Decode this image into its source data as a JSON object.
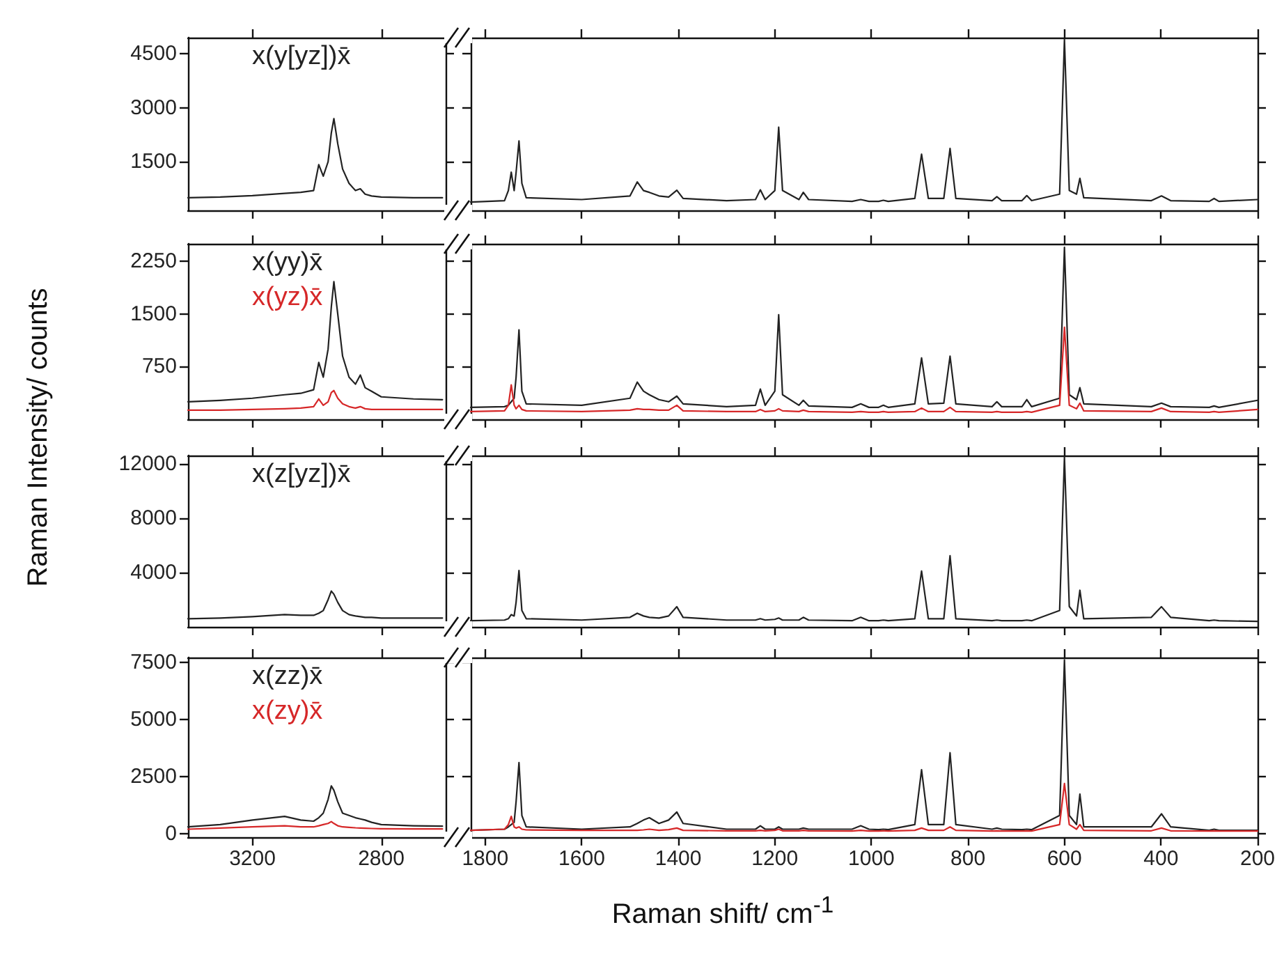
{
  "chart_data": [
    {
      "type": "line",
      "ylabel": "Raman Intensity/ counts",
      "legend": "top left",
      "marker": "none",
      "tick_labels": "y",
      "x": [
        3400,
        3300,
        3200,
        3100,
        3050,
        3010,
        2994,
        2980,
        2965,
        2955,
        2947,
        2935,
        2920,
        2900,
        2880,
        2865,
        2850,
        2830,
        2800,
        2700,
        2610
      ],
      "xlim": [
        3400,
        2600
      ],
      "xticks": [
        3200,
        2800
      ],
      "ylim": [
        150,
        4950
      ],
      "yticks": [
        1500,
        3000,
        4500
      ],
      "series": [
        {
          "name": "x(y[yz])x̄",
          "color": "#222222",
          "values": [
            500,
            520,
            560,
            620,
            650,
            700,
            1420,
            1100,
            1500,
            2300,
            2700,
            2000,
            1300,
            900,
            700,
            750,
            600,
            550,
            520,
            500,
            500
          ]
        }
      ]
    },
    {
      "type": "line",
      "marker": "none",
      "tick_labels": false,
      "x": [
        1830,
        1760,
        1752,
        1746,
        1740,
        1736,
        1730,
        1724,
        1715,
        1600,
        1500,
        1485,
        1472,
        1460,
        1440,
        1420,
        1403,
        1390,
        1300,
        1240,
        1230,
        1220,
        1200,
        1192,
        1184,
        1150,
        1141,
        1130,
        1040,
        1022,
        1005,
        985,
        975,
        965,
        910,
        896,
        882,
        850,
        837,
        825,
        750,
        740,
        730,
        688,
        678,
        668,
        610,
        600,
        590,
        575,
        568,
        560,
        420,
        399,
        380,
        300,
        290,
        280,
        200
      ],
      "xlim": [
        1830,
        200
      ],
      "xticks": [
        1800,
        1600,
        1400,
        1200,
        1000,
        800,
        600,
        400,
        200
      ],
      "ylim": [
        150,
        4950
      ],
      "yticks": [
        1500,
        3000,
        4500
      ],
      "series": [
        {
          "color": "#222222",
          "values": [
            380,
            420,
            700,
            1210,
            700,
            1200,
            2080,
            900,
            500,
            450,
            550,
            940,
            700,
            650,
            550,
            520,
            710,
            480,
            420,
            450,
            720,
            450,
            700,
            2460,
            700,
            450,
            650,
            450,
            400,
            450,
            400,
            400,
            430,
            400,
            480,
            1710,
            480,
            480,
            1870,
            480,
            420,
            530,
            420,
            420,
            560,
            420,
            600,
            4900,
            700,
            600,
            1040,
            500,
            420,
            550,
            420,
            400,
            480,
            400,
            450
          ]
        }
      ]
    },
    {
      "type": "line",
      "legend": "top left",
      "marker": "none",
      "tick_labels": "y",
      "x": [
        3400,
        3300,
        3200,
        3100,
        3050,
        3010,
        2994,
        2980,
        2965,
        2955,
        2947,
        2935,
        2920,
        2900,
        2880,
        2865,
        2850,
        2830,
        2800,
        2700,
        2610
      ],
      "xlim": [
        3400,
        2600
      ],
      "xticks": [
        3200,
        2800
      ],
      "ylim": [
        0,
        2500
      ],
      "yticks": [
        750,
        1500,
        2250
      ],
      "series": [
        {
          "name": "x(yy)x̄",
          "color": "#222222",
          "values": [
            250,
            270,
            300,
            350,
            370,
            420,
            810,
            600,
            1000,
            1600,
            1960,
            1500,
            900,
            600,
            500,
            630,
            450,
            400,
            320,
            290,
            280
          ]
        },
        {
          "name": "x(yz)x̄",
          "color": "#d62728",
          "values": [
            130,
            130,
            140,
            150,
            160,
            180,
            290,
            200,
            250,
            380,
            410,
            300,
            220,
            180,
            160,
            180,
            150,
            140,
            140,
            140,
            140
          ]
        }
      ]
    },
    {
      "type": "line",
      "marker": "none",
      "tick_labels": false,
      "x": [
        1830,
        1760,
        1752,
        1746,
        1740,
        1736,
        1730,
        1724,
        1715,
        1600,
        1500,
        1485,
        1472,
        1460,
        1440,
        1420,
        1403,
        1390,
        1300,
        1240,
        1230,
        1220,
        1200,
        1192,
        1184,
        1150,
        1141,
        1130,
        1040,
        1022,
        1005,
        985,
        975,
        965,
        910,
        896,
        882,
        850,
        837,
        825,
        750,
        740,
        730,
        688,
        678,
        668,
        610,
        600,
        590,
        575,
        568,
        560,
        420,
        399,
        380,
        300,
        290,
        280,
        200
      ],
      "xlim": [
        1830,
        200
      ],
      "xticks": [
        1800,
        1600,
        1400,
        1200,
        1000,
        800,
        600,
        400,
        200
      ],
      "ylim": [
        0,
        2500
      ],
      "yticks": [
        750,
        1500,
        2250
      ],
      "series": [
        {
          "color": "#222222",
          "values": [
            170,
            180,
            200,
            250,
            300,
            600,
            1275,
            400,
            220,
            200,
            300,
            530,
            400,
            350,
            280,
            250,
            330,
            220,
            180,
            200,
            430,
            200,
            400,
            1490,
            350,
            200,
            270,
            190,
            170,
            220,
            170,
            170,
            200,
            170,
            220,
            875,
            220,
            230,
            900,
            220,
            180,
            250,
            180,
            180,
            280,
            180,
            300,
            2450,
            350,
            280,
            450,
            220,
            180,
            230,
            180,
            170,
            190,
            170,
            270
          ]
        },
        {
          "color": "#d62728",
          "values": [
            110,
            120,
            200,
            490,
            200,
            150,
            200,
            140,
            120,
            110,
            130,
            150,
            140,
            140,
            130,
            130,
            200,
            120,
            110,
            110,
            140,
            110,
            120,
            150,
            120,
            110,
            130,
            110,
            100,
            110,
            100,
            100,
            110,
            100,
            110,
            160,
            110,
            110,
            170,
            110,
            100,
            110,
            100,
            100,
            110,
            100,
            200,
            1310,
            200,
            150,
            230,
            120,
            110,
            160,
            110,
            100,
            110,
            100,
            140
          ]
        }
      ]
    },
    {
      "type": "line",
      "legend": "top left",
      "marker": "none",
      "tick_labels": "y",
      "x": [
        3400,
        3300,
        3200,
        3100,
        3050,
        3010,
        2994,
        2980,
        2965,
        2955,
        2947,
        2935,
        2920,
        2900,
        2880,
        2865,
        2850,
        2830,
        2800,
        2700,
        2610
      ],
      "xlim": [
        3400,
        2600
      ],
      "xticks": [
        3200,
        2800
      ],
      "ylim": [
        0,
        12600
      ],
      "yticks": [
        4000,
        8000,
        12000
      ],
      "series": [
        {
          "name": "x(z[yz])x̄",
          "color": "#222222",
          "values": [
            600,
            650,
            750,
            900,
            850,
            850,
            1000,
            1200,
            2000,
            2630,
            2400,
            1800,
            1200,
            900,
            800,
            750,
            700,
            700,
            650,
            650,
            650
          ]
        }
      ]
    },
    {
      "type": "line",
      "marker": "none",
      "tick_labels": false,
      "x": [
        1830,
        1760,
        1752,
        1746,
        1740,
        1736,
        1730,
        1724,
        1715,
        1600,
        1500,
        1485,
        1472,
        1460,
        1440,
        1420,
        1403,
        1390,
        1300,
        1240,
        1230,
        1220,
        1200,
        1192,
        1184,
        1150,
        1141,
        1130,
        1040,
        1022,
        1005,
        985,
        975,
        965,
        910,
        896,
        882,
        850,
        837,
        825,
        750,
        740,
        730,
        688,
        678,
        668,
        610,
        600,
        590,
        575,
        568,
        560,
        420,
        399,
        380,
        300,
        290,
        280,
        200
      ],
      "xlim": [
        1830,
        200
      ],
      "xticks": [
        1800,
        1600,
        1400,
        1200,
        1000,
        800,
        600,
        400,
        200
      ],
      "ylim": [
        0,
        12600
      ],
      "yticks": [
        4000,
        8000,
        12000
      ],
      "series": [
        {
          "color": "#222222",
          "values": [
            450,
            500,
            600,
            900,
            800,
            1800,
            4140,
            1200,
            600,
            500,
            700,
            1000,
            800,
            700,
            650,
            800,
            1480,
            700,
            500,
            500,
            600,
            500,
            550,
            650,
            500,
            500,
            700,
            500,
            450,
            700,
            450,
            450,
            500,
            450,
            600,
            4100,
            600,
            600,
            5230,
            600,
            450,
            500,
            450,
            450,
            500,
            450,
            1200,
            12500,
            1500,
            800,
            2690,
            600,
            700,
            1480,
            700,
            450,
            500,
            450,
            400
          ]
        }
      ]
    },
    {
      "type": "line",
      "legend": "top left",
      "marker": "none",
      "x": [
        3400,
        3300,
        3200,
        3100,
        3050,
        3010,
        2994,
        2980,
        2965,
        2955,
        2947,
        2935,
        2920,
        2900,
        2880,
        2865,
        2850,
        2830,
        2800,
        2700,
        2610
      ],
      "xlim": [
        3400,
        2600
      ],
      "xticks": [
        3200,
        2800
      ],
      "ylim": [
        -150,
        7700
      ],
      "yticks": [
        0,
        2500,
        5000,
        7500
      ],
      "series": [
        {
          "name": "x(zz)x̄",
          "color": "#222222",
          "values": [
            300,
            400,
            600,
            760,
            600,
            550,
            700,
            900,
            1500,
            2090,
            1900,
            1400,
            900,
            800,
            700,
            650,
            600,
            500,
            400,
            350,
            330
          ]
        },
        {
          "name": "x(zy)x̄",
          "color": "#d62728",
          "values": [
            200,
            250,
            300,
            350,
            300,
            300,
            350,
            400,
            450,
            530,
            450,
            350,
            300,
            280,
            260,
            250,
            240,
            230,
            220,
            210,
            210
          ]
        }
      ]
    },
    {
      "type": "line",
      "xlabel": "Raman shift/ cm$^{-1}$",
      "marker": "none",
      "tick_labels": "x",
      "x": [
        1830,
        1760,
        1752,
        1746,
        1740,
        1736,
        1730,
        1724,
        1715,
        1600,
        1500,
        1485,
        1472,
        1460,
        1440,
        1420,
        1403,
        1390,
        1300,
        1240,
        1230,
        1220,
        1200,
        1192,
        1184,
        1150,
        1141,
        1130,
        1040,
        1022,
        1005,
        985,
        975,
        965,
        910,
        896,
        882,
        850,
        837,
        825,
        750,
        740,
        730,
        688,
        678,
        668,
        610,
        600,
        590,
        575,
        568,
        560,
        420,
        399,
        380,
        300,
        290,
        280,
        200
      ],
      "xlim": [
        1830,
        200
      ],
      "xticks": [
        1800,
        1600,
        1400,
        1200,
        1000,
        800,
        600,
        400,
        200
      ],
      "ylim": [
        -150,
        7700
      ],
      "yticks": [
        0,
        2500,
        5000,
        7500
      ],
      "series": [
        {
          "color": "#222222",
          "values": [
            150,
            200,
            300,
            400,
            500,
            1400,
            3110,
            800,
            300,
            200,
            300,
            450,
            600,
            700,
            450,
            600,
            950,
            450,
            200,
            200,
            350,
            200,
            200,
            300,
            200,
            200,
            250,
            200,
            200,
            350,
            200,
            180,
            200,
            180,
            400,
            2800,
            400,
            400,
            3540,
            400,
            200,
            250,
            200,
            180,
            200,
            180,
            800,
            7600,
            800,
            400,
            1730,
            300,
            300,
            870,
            300,
            150,
            200,
            150,
            150
          ]
        },
        {
          "color": "#d62728",
          "values": [
            150,
            200,
            400,
            760,
            300,
            250,
            300,
            200,
            170,
            150,
            150,
            150,
            170,
            200,
            150,
            180,
            250,
            150,
            130,
            130,
            150,
            130,
            150,
            200,
            130,
            130,
            150,
            130,
            120,
            150,
            120,
            120,
            130,
            120,
            150,
            250,
            150,
            150,
            300,
            150,
            120,
            130,
            120,
            120,
            130,
            120,
            400,
            2200,
            400,
            200,
            400,
            150,
            130,
            250,
            130,
            120,
            130,
            120,
            120
          ]
        }
      ]
    }
  ]
}
